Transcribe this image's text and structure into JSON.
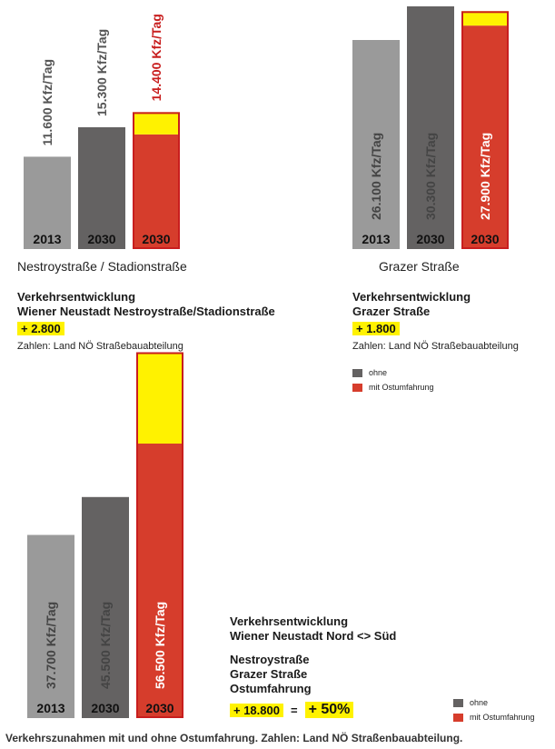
{
  "colors": {
    "c2013": "#9a9a9a",
    "c2030": "#646262",
    "ostum": "#d63d2c",
    "increase": "#fff200",
    "border": "#c81e1e"
  },
  "legend": {
    "ohne": "ohne",
    "mit": "mit Ostumfahrung"
  },
  "chart_data": [
    {
      "type": "bar",
      "title": "Nestroystraße / Stadionstraße",
      "unit": "Kfz/Tag",
      "categories": [
        "2013",
        "2030",
        "2030"
      ],
      "values": [
        11600,
        15300,
        14400
      ],
      "value_labels": [
        "11.600",
        "15.300",
        "14.400"
      ],
      "increase_values": [
        0,
        0,
        2800
      ],
      "ylim": [
        0,
        15300
      ],
      "heading": [
        "Verkehrsentwicklung",
        "Wiener Neustadt Nestroystraße/Stadionstraße"
      ],
      "highlight": "+ 2.800",
      "source": "Zahlen: Land NÖ Straßebauabteilung"
    },
    {
      "type": "bar",
      "title": "Grazer Straße",
      "unit": "Kfz/Tag",
      "categories": [
        "2013",
        "2030",
        "2030"
      ],
      "values": [
        26100,
        30300,
        27900
      ],
      "value_labels": [
        "26.100",
        "30.300",
        "27.900"
      ],
      "increase_values": [
        0,
        0,
        1800
      ],
      "ylim": [
        0,
        30300
      ],
      "heading": [
        "Verkehrsentwicklung",
        "Grazer Straße"
      ],
      "highlight": "+ 1.800",
      "source": "Zahlen: Land NÖ Straßebauabteilung"
    },
    {
      "type": "bar",
      "title": "",
      "unit": "Kfz/Tag",
      "categories": [
        "2013",
        "2030",
        "2030"
      ],
      "values": [
        37700,
        45500,
        56500
      ],
      "value_labels": [
        "37.700",
        "45.500",
        "56.500"
      ],
      "increase_values": [
        0,
        0,
        18800
      ],
      "ylim": [
        0,
        56500
      ],
      "heading": [
        "Verkehrsentwicklung",
        "Wiener Neustadt Nord <> Süd"
      ],
      "roads": [
        "Nestroystraße",
        "Grazer Straße",
        "Ostumfahrung"
      ],
      "highlight": "+ 18.800",
      "equals": "=",
      "percent": "+ 50%"
    }
  ],
  "caption": "Verkehrszunahmen mit und ohne Ostumfahrung. Zahlen: Land NÖ Straßenbauabteilung."
}
